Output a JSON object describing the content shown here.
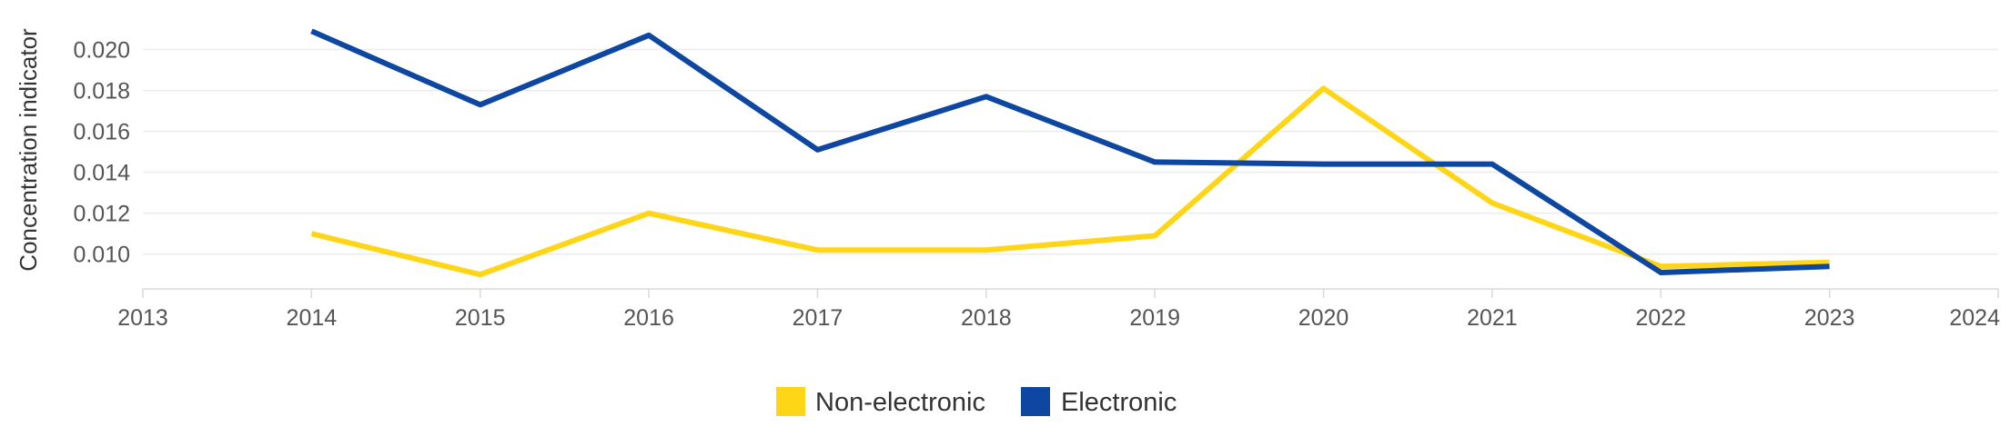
{
  "chart_data": {
    "type": "line",
    "ylabel": "Concentration indicator",
    "xlabel": "",
    "xlim": [
      2013,
      2024
    ],
    "ylim": [
      0.0083,
      0.0218
    ],
    "x_ticks": [
      "2013",
      "2014",
      "2015",
      "2016",
      "2017",
      "2018",
      "2019",
      "2020",
      "2021",
      "2022",
      "2023",
      "2024"
    ],
    "y_ticks": [
      "0.010",
      "0.012",
      "0.014",
      "0.016",
      "0.018",
      "0.020"
    ],
    "grid": true,
    "legend_position": "bottom-center",
    "x": [
      2014,
      2015,
      2016,
      2017,
      2018,
      2019,
      2020,
      2021,
      2022,
      2023
    ],
    "series": [
      {
        "name": "Non-electronic",
        "color": "#FFD617",
        "values": [
          0.011,
          0.009,
          0.012,
          0.0102,
          0.0102,
          0.0109,
          0.0181,
          0.0125,
          0.0094,
          0.0096
        ]
      },
      {
        "name": "Electronic",
        "color": "#0E47A1",
        "values": [
          0.0209,
          0.0173,
          0.0207,
          0.0151,
          0.0177,
          0.0145,
          0.0144,
          0.0144,
          0.0091,
          0.0094
        ]
      }
    ]
  }
}
